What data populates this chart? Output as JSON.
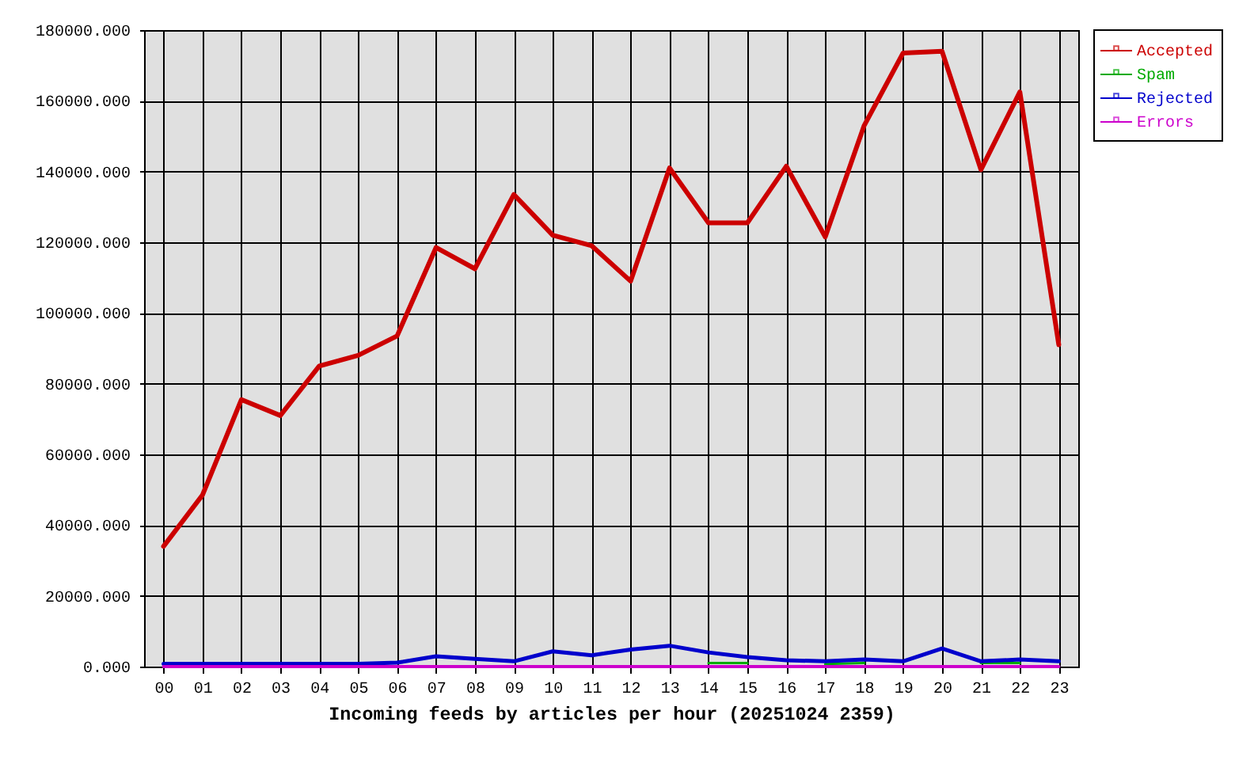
{
  "chart_data": {
    "type": "line",
    "xlabel": "Incoming feeds by articles per hour (20251024 2359)",
    "categories": [
      "00",
      "01",
      "02",
      "03",
      "04",
      "05",
      "06",
      "07",
      "08",
      "09",
      "10",
      "11",
      "12",
      "13",
      "14",
      "15",
      "16",
      "17",
      "18",
      "19",
      "20",
      "21",
      "22",
      "23"
    ],
    "series": [
      {
        "name": "Accepted",
        "color": "#cc0000",
        "values": [
          34000,
          48500,
          75500,
          71000,
          85000,
          88000,
          93500,
          118500,
          112500,
          133500,
          122000,
          119000,
          109000,
          141000,
          125500,
          125500,
          141500,
          121500,
          153000,
          173500,
          174000,
          140500,
          162500,
          91000
        ]
      },
      {
        "name": "Spam",
        "color": "#00aa00",
        "values": [
          null,
          null,
          null,
          null,
          null,
          null,
          null,
          null,
          null,
          null,
          null,
          null,
          null,
          null,
          1000,
          1000,
          null,
          700,
          1000,
          null,
          null,
          1000,
          1000,
          null
        ]
      },
      {
        "name": "Rejected",
        "color": "#0000cc",
        "values": [
          800,
          800,
          800,
          800,
          800,
          800,
          1100,
          2900,
          2200,
          1500,
          4300,
          3200,
          4800,
          5900,
          4000,
          2700,
          1800,
          1500,
          2000,
          1500,
          5100,
          1500,
          2000,
          1500
        ]
      },
      {
        "name": "Errors",
        "color": "#cc00cc",
        "values": [
          0,
          0,
          0,
          0,
          0,
          0,
          0,
          0,
          0,
          0,
          0,
          0,
          0,
          0,
          0,
          0,
          0,
          0,
          0,
          0,
          0,
          0,
          0,
          0
        ]
      }
    ],
    "ylim": [
      0,
      180000
    ],
    "yticks": [
      {
        "value": 0,
        "label": "0.000"
      },
      {
        "value": 20000,
        "label": "20000.000"
      },
      {
        "value": 40000,
        "label": "40000.000"
      },
      {
        "value": 60000,
        "label": "60000.000"
      },
      {
        "value": 80000,
        "label": "80000.000"
      },
      {
        "value": 100000,
        "label": "100000.000"
      },
      {
        "value": 120000,
        "label": "120000.000"
      },
      {
        "value": 140000,
        "label": "140000.000"
      },
      {
        "value": 160000,
        "label": "160000.000"
      },
      {
        "value": 180000,
        "label": "180000.000"
      }
    ],
    "grid": true,
    "legend": "top right"
  }
}
